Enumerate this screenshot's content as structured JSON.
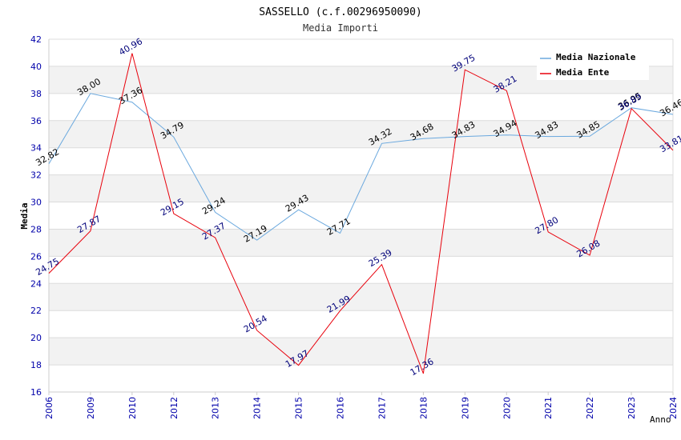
{
  "chart_data": {
    "type": "line",
    "title": "SASSELLO (c.f.00296950090)",
    "subtitle": "Media Importi",
    "xlabel": "Anno",
    "ylabel": "Media",
    "categories": [
      "2006",
      "2009",
      "2010",
      "2012",
      "2013",
      "2014",
      "2015",
      "2016",
      "2017",
      "2018",
      "2019",
      "2020",
      "2021",
      "2022",
      "2023",
      "2024"
    ],
    "ylim": [
      16,
      42
    ],
    "yticks": [
      "16",
      "18",
      "20",
      "22",
      "24",
      "26",
      "28",
      "30",
      "32",
      "34",
      "36",
      "38",
      "40",
      "42"
    ],
    "legend_position": "top-right",
    "series": [
      {
        "name": "Media Nazionale",
        "color": "#6aa8de",
        "label_color": "#000000",
        "values": [
          32.82,
          38.0,
          37.36,
          34.79,
          29.24,
          27.19,
          29.43,
          27.71,
          34.32,
          34.68,
          34.83,
          34.94,
          34.83,
          34.85,
          36.95,
          36.46
        ],
        "labels": [
          "32.82",
          "38.00",
          "37.36",
          "34.79",
          "29.24",
          "27.19",
          "29.43",
          "27.71",
          "34.32",
          "34.68",
          "34.83",
          "34.94",
          "34.83",
          "34.85",
          "36.95",
          "36.46"
        ]
      },
      {
        "name": "Media Ente",
        "color": "#e8000b",
        "label_color": "#00007a",
        "values": [
          24.75,
          27.87,
          40.96,
          29.15,
          27.37,
          20.54,
          17.97,
          21.99,
          25.39,
          17.36,
          39.75,
          38.21,
          27.8,
          26.08,
          36.89,
          33.81
        ],
        "labels": [
          "24.75",
          "27.87",
          "40.96",
          "29.15",
          "27.37",
          "20.54",
          "17.97",
          "21.99",
          "25.39",
          "17.36",
          "39.75",
          "38.21",
          "27.80",
          "26.08",
          "36.89",
          "33.81"
        ]
      }
    ]
  }
}
